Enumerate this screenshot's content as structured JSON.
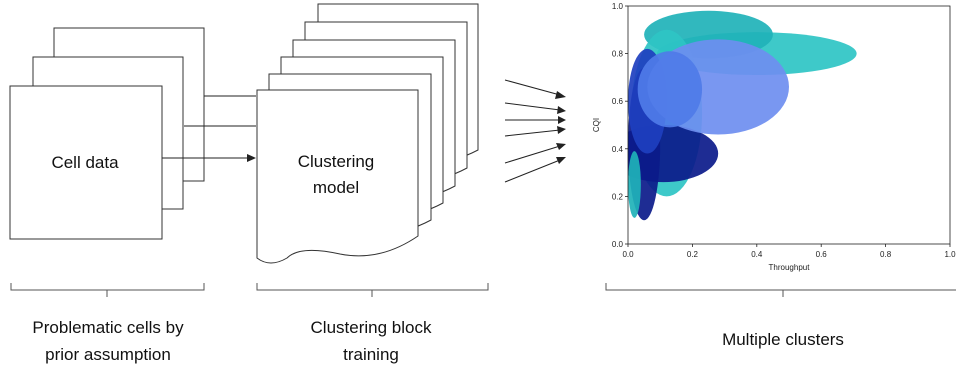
{
  "cell_block": {
    "title": "Cell data",
    "caption_line1": "Problematic cells by",
    "caption_line2": "prior assumption"
  },
  "model_block": {
    "title_line1": "Clustering",
    "title_line2": "model",
    "caption_line1": "Clustering block",
    "caption_line2": "training"
  },
  "plot_block": {
    "caption": "Multiple clusters"
  },
  "chart_data": {
    "type": "scatter",
    "xlabel": "Throughput",
    "ylabel": "CQI",
    "xlim": [
      0.0,
      1.0
    ],
    "ylim": [
      0.0,
      1.0
    ],
    "x_ticks": [
      "0.0",
      "0.2",
      "0.4",
      "0.6",
      "0.8",
      "1.0"
    ],
    "y_ticks": [
      "0.0",
      "0.2",
      "0.4",
      "0.6",
      "0.8",
      "1.0"
    ],
    "grid": false,
    "colors": [
      "#0b1a8a",
      "#1e3fbf",
      "#4f7be8",
      "#6e8ef0",
      "#20b2b8",
      "#2ec4c4"
    ],
    "clusters": [
      {
        "color": "#2ec4c4",
        "cx": 0.4,
        "cy": 0.8,
        "rx": 0.31,
        "ry": 0.09
      },
      {
        "color": "#20b2b8",
        "cx": 0.25,
        "cy": 0.88,
        "rx": 0.2,
        "ry": 0.1
      },
      {
        "color": "#2ec4c4",
        "cx": 0.12,
        "cy": 0.55,
        "rx": 0.11,
        "ry": 0.35
      },
      {
        "color": "#0b1a8a",
        "cx": 0.11,
        "cy": 0.38,
        "rx": 0.17,
        "ry": 0.12
      },
      {
        "color": "#0b1a8a",
        "cx": 0.05,
        "cy": 0.42,
        "rx": 0.05,
        "ry": 0.32
      },
      {
        "color": "#1e3fbf",
        "cx": 0.06,
        "cy": 0.6,
        "rx": 0.06,
        "ry": 0.22
      },
      {
        "color": "#6e8ef0",
        "cx": 0.28,
        "cy": 0.66,
        "rx": 0.22,
        "ry": 0.2
      },
      {
        "color": "#4f7be8",
        "cx": 0.13,
        "cy": 0.65,
        "rx": 0.1,
        "ry": 0.16
      },
      {
        "color": "#20b2b8",
        "cx": 0.02,
        "cy": 0.25,
        "rx": 0.02,
        "ry": 0.14
      }
    ]
  }
}
